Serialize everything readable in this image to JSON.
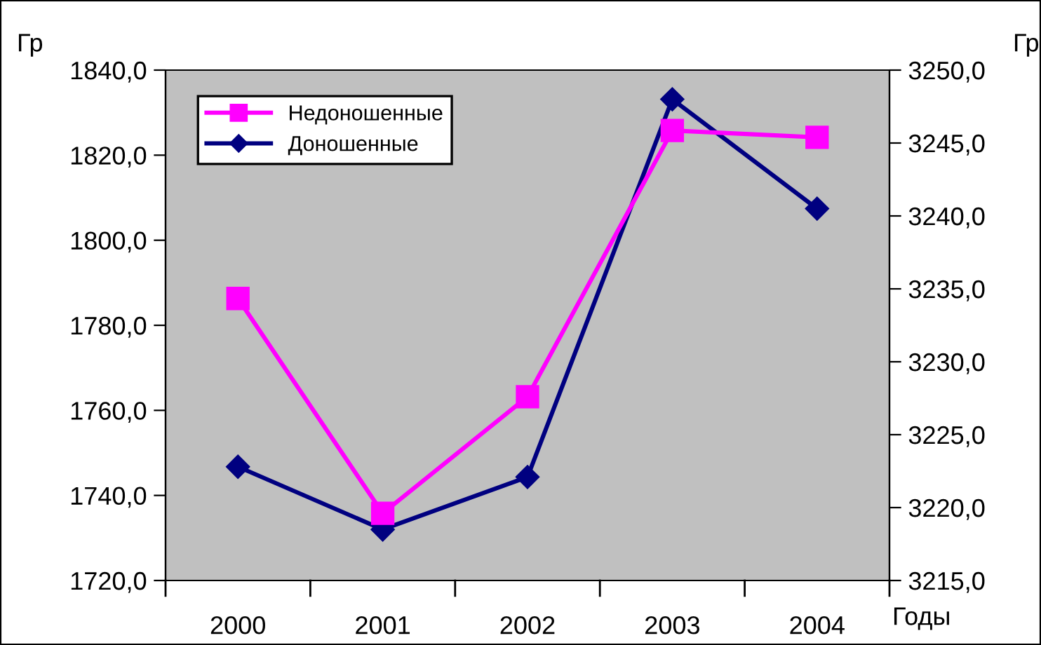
{
  "chart_data": {
    "type": "line",
    "ylabel": "Гр",
    "y2label": "Гр",
    "xlabel": "Годы",
    "categories": [
      "2000",
      "2001",
      "2002",
      "2003",
      "2004"
    ],
    "series": [
      {
        "name": "Недоношенные",
        "color": "#ff00ff",
        "marker": "square",
        "values": [
          1786.3,
          1735.8,
          1763.2,
          1825.8,
          1824.2
        ]
      },
      {
        "name": "Доношенные",
        "color": "#000080",
        "marker": "diamond",
        "axis": "y2",
        "values": [
          3222.8,
          3218.5,
          3222.1,
          3248.0,
          3240.5
        ]
      }
    ],
    "ylim": [
      1720,
      1840
    ],
    "yticks": [
      {
        "value": 1720,
        "label": "1720,0"
      },
      {
        "value": 1740,
        "label": "1740,0"
      },
      {
        "value": 1760,
        "label": "1760,0"
      },
      {
        "value": 1780,
        "label": "1780,0"
      },
      {
        "value": 1800,
        "label": "1800,0"
      },
      {
        "value": 1820,
        "label": "1820,0"
      },
      {
        "value": 1840,
        "label": "1840,0"
      }
    ],
    "y2lim": [
      3215,
      3250
    ],
    "y2ticks": [
      {
        "value": 3215,
        "label": "3215,0"
      },
      {
        "value": 3220,
        "label": "3220,0"
      },
      {
        "value": 3225,
        "label": "3225,0"
      },
      {
        "value": 3230,
        "label": "3230,0"
      },
      {
        "value": 3235,
        "label": "3235,0"
      },
      {
        "value": 3240,
        "label": "3240,0"
      },
      {
        "value": 3245,
        "label": "3245,0"
      },
      {
        "value": 3250,
        "label": "3250,0"
      }
    ],
    "grid": false,
    "legend": "top left",
    "line_style": "solid"
  }
}
